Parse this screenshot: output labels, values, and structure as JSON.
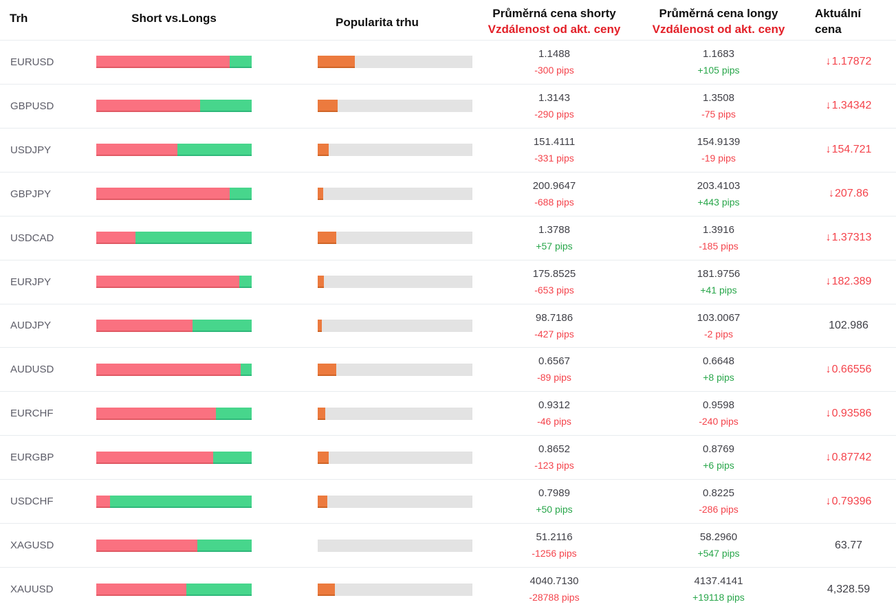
{
  "header": {
    "col_market": "Trh",
    "col_ratio": "Short vs.Longs",
    "col_popularity": "Popularita trhu",
    "col_short_line1": "Průměrná cena shorty",
    "col_short_line2": "Vzdálenost od akt. ceny",
    "col_long_line1": "Průměrná cena longy",
    "col_long_line2": "Vzdálenost od akt. ceny",
    "col_current_line1": "Aktuální",
    "col_current_line2": "cena"
  },
  "colors": {
    "short_bar": "#fa7180",
    "long_bar": "#47d68c",
    "popularity_bar": "#ec7a3e",
    "track": "#e3e3e3",
    "negative_text": "#f4434b",
    "positive_text": "#28a64a",
    "header_accent_red": "#e32028",
    "row_separator": "#e8ecef"
  },
  "icons": {
    "down_arrow": "↓"
  },
  "rows": [
    {
      "market": "EURUSD",
      "short_pct": 86,
      "popularity_pct": 24,
      "short_price": "1.1488",
      "short_dist": "-300 pips",
      "long_price": "1.1683",
      "long_dist": "+105 pips",
      "current": "1.17872",
      "current_dir": "down"
    },
    {
      "market": "GBPUSD",
      "short_pct": 67,
      "popularity_pct": 13,
      "short_price": "1.3143",
      "short_dist": "-290 pips",
      "long_price": "1.3508",
      "long_dist": "-75 pips",
      "current": "1.34342",
      "current_dir": "down"
    },
    {
      "market": "USDJPY",
      "short_pct": 52,
      "popularity_pct": 7,
      "short_price": "151.4111",
      "short_dist": "-331 pips",
      "long_price": "154.9139",
      "long_dist": "-19 pips",
      "current": "154.721",
      "current_dir": "down"
    },
    {
      "market": "GBPJPY",
      "short_pct": 86,
      "popularity_pct": 3.5,
      "short_price": "200.9647",
      "short_dist": "-688 pips",
      "long_price": "203.4103",
      "long_dist": "+443 pips",
      "current": "207.86",
      "current_dir": "down"
    },
    {
      "market": "USDCAD",
      "short_pct": 25,
      "popularity_pct": 12,
      "short_price": "1.3788",
      "short_dist": "+57 pips",
      "long_price": "1.3916",
      "long_dist": "-185 pips",
      "current": "1.37313",
      "current_dir": "down"
    },
    {
      "market": "EURJPY",
      "short_pct": 92,
      "popularity_pct": 4,
      "short_price": "175.8525",
      "short_dist": "-653 pips",
      "long_price": "181.9756",
      "long_dist": "+41 pips",
      "current": "182.389",
      "current_dir": "down"
    },
    {
      "market": "AUDJPY",
      "short_pct": 62,
      "popularity_pct": 2.5,
      "short_price": "98.7186",
      "short_dist": "-427 pips",
      "long_price": "103.0067",
      "long_dist": "-2 pips",
      "current": "102.986",
      "current_dir": "none"
    },
    {
      "market": "AUDUSD",
      "short_pct": 93,
      "popularity_pct": 12,
      "short_price": "0.6567",
      "short_dist": "-89 pips",
      "long_price": "0.6648",
      "long_dist": "+8 pips",
      "current": "0.66556",
      "current_dir": "down"
    },
    {
      "market": "EURCHF",
      "short_pct": 77,
      "popularity_pct": 5,
      "short_price": "0.9312",
      "short_dist": "-46 pips",
      "long_price": "0.9598",
      "long_dist": "-240 pips",
      "current": "0.93586",
      "current_dir": "down"
    },
    {
      "market": "EURGBP",
      "short_pct": 75,
      "popularity_pct": 7,
      "short_price": "0.8652",
      "short_dist": "-123 pips",
      "long_price": "0.8769",
      "long_dist": "+6 pips",
      "current": "0.87742",
      "current_dir": "down"
    },
    {
      "market": "USDCHF",
      "short_pct": 9,
      "popularity_pct": 6,
      "short_price": "0.7989",
      "short_dist": "+50 pips",
      "long_price": "0.8225",
      "long_dist": "-286 pips",
      "current": "0.79396",
      "current_dir": "down"
    },
    {
      "market": "XAGUSD",
      "short_pct": 65,
      "popularity_pct": 0,
      "short_price": "51.2116",
      "short_dist": "-1256 pips",
      "long_price": "58.2960",
      "long_dist": "+547 pips",
      "current": "63.77",
      "current_dir": "none"
    },
    {
      "market": "XAUUSD",
      "short_pct": 58,
      "popularity_pct": 11,
      "short_price": "4040.7130",
      "short_dist": "-28788 pips",
      "long_price": "4137.4141",
      "long_dist": "+19118 pips",
      "current": "4,328.59",
      "current_dir": "none"
    }
  ]
}
